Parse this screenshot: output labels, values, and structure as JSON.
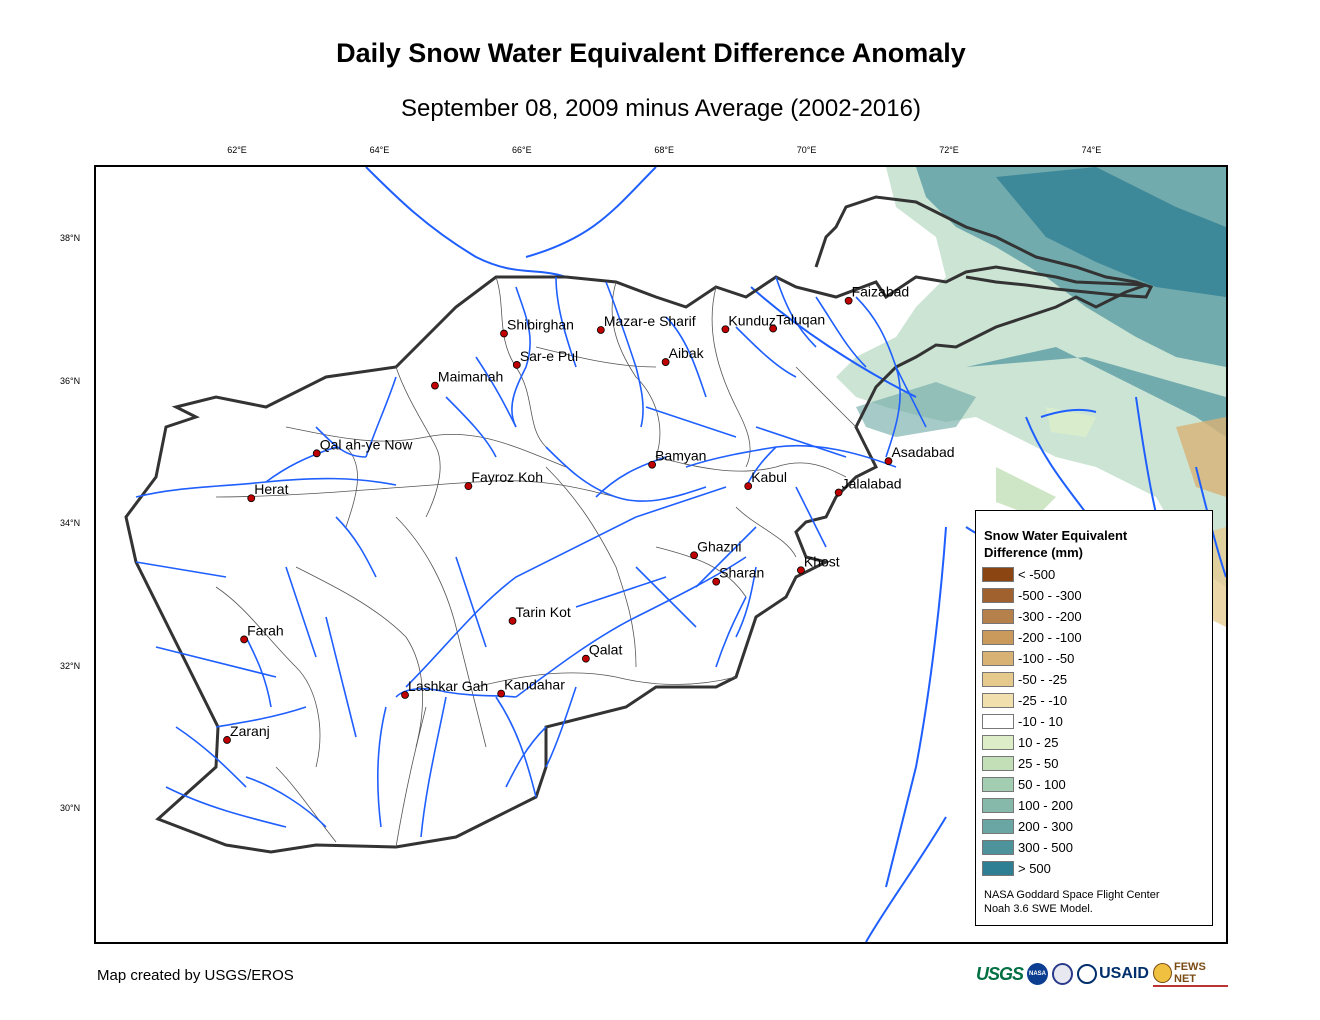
{
  "title": "Daily Snow Water Equivalent Difference Anomaly",
  "subtitle": "September 08, 2009 minus Average (2002-2016)",
  "lon_ticks": [
    "62°E",
    "64°E",
    "66°E",
    "68°E",
    "70°E",
    "72°E",
    "74°E"
  ],
  "lat_ticks": [
    "38°N",
    "36°N",
    "34°N",
    "32°N",
    "30°N"
  ],
  "cities": [
    {
      "name": "Shibirghan",
      "lon": 65.75,
      "lat": 36.66
    },
    {
      "name": "Mazar-e Sharif",
      "lon": 67.11,
      "lat": 36.71
    },
    {
      "name": "Kunduz",
      "lon": 68.86,
      "lat": 36.72
    },
    {
      "name": "Taluqan",
      "lon": 69.53,
      "lat": 36.73
    },
    {
      "name": "Faizabad",
      "lon": 70.59,
      "lat": 37.12
    },
    {
      "name": "Sar-e Pul",
      "lon": 65.93,
      "lat": 36.22
    },
    {
      "name": "Aibak",
      "lon": 68.02,
      "lat": 36.26
    },
    {
      "name": "Maimanah",
      "lon": 64.78,
      "lat": 35.93
    },
    {
      "name": "Qal ah-ye Now",
      "lon": 63.12,
      "lat": 34.98
    },
    {
      "name": "Bamyan",
      "lon": 67.83,
      "lat": 34.82
    },
    {
      "name": "Asadabad",
      "lon": 71.15,
      "lat": 34.87
    },
    {
      "name": "Fayroz Koh",
      "lon": 65.25,
      "lat": 34.52
    },
    {
      "name": "Kabul",
      "lon": 69.18,
      "lat": 34.52
    },
    {
      "name": "Herat",
      "lon": 62.2,
      "lat": 34.35
    },
    {
      "name": "Jalalabad",
      "lon": 70.45,
      "lat": 34.43
    },
    {
      "name": "Ghazni",
      "lon": 68.42,
      "lat": 33.55
    },
    {
      "name": "Khost",
      "lon": 69.92,
      "lat": 33.34
    },
    {
      "name": "Sharan",
      "lon": 68.73,
      "lat": 33.18
    },
    {
      "name": "Tarin Kot",
      "lon": 65.87,
      "lat": 32.63
    },
    {
      "name": "Farah",
      "lon": 62.1,
      "lat": 32.37
    },
    {
      "name": "Qalat",
      "lon": 66.9,
      "lat": 32.1
    },
    {
      "name": "Lashkar Gah",
      "lon": 64.36,
      "lat": 31.59
    },
    {
      "name": "Kandahar",
      "lon": 65.71,
      "lat": 31.61
    },
    {
      "name": "Zaranj",
      "lon": 61.86,
      "lat": 30.96
    }
  ],
  "legend": {
    "title_line1": "Snow Water Equivalent",
    "title_line2": "Difference (mm)",
    "items": [
      {
        "label": "< -500",
        "color": "#8b4513"
      },
      {
        "label": "-500 - -300",
        "color": "#a0612f"
      },
      {
        "label": "-300 - -200",
        "color": "#b5804a"
      },
      {
        "label": "-200 - -100",
        "color": "#c99a5c"
      },
      {
        "label": "-100 - -50",
        "color": "#d8b274"
      },
      {
        "label": "-50 - -25",
        "color": "#e6c98c"
      },
      {
        "label": "-25 - -10",
        "color": "#f2dfae"
      },
      {
        "label": "-10 - 10",
        "color": "#ffffff"
      },
      {
        "label": "10 - 25",
        "color": "#dcedc8"
      },
      {
        "label": "25 - 50",
        "color": "#c2dfb8"
      },
      {
        "label": "50 - 100",
        "color": "#a3cdb0"
      },
      {
        "label": "100 - 200",
        "color": "#86b9a9"
      },
      {
        "label": "200 - 300",
        "color": "#6aa6a3"
      },
      {
        "label": "300 - 500",
        "color": "#4c939c"
      },
      {
        "label": "> 500",
        "color": "#2f7f94"
      }
    ],
    "credit_line1": "NASA Goddard Space Flight Center",
    "credit_line2": "Noah 3.6 SWE Model."
  },
  "footer_credit": "Map created by USGS/EROS",
  "logos": {
    "usgs": "USGS",
    "nasa": "NASA",
    "usaid": "USAID",
    "fews": "FEWS NET"
  },
  "colors": {
    "border": "#333333",
    "river": "#1f5fff",
    "district": "#555555",
    "city": "#c00000"
  }
}
